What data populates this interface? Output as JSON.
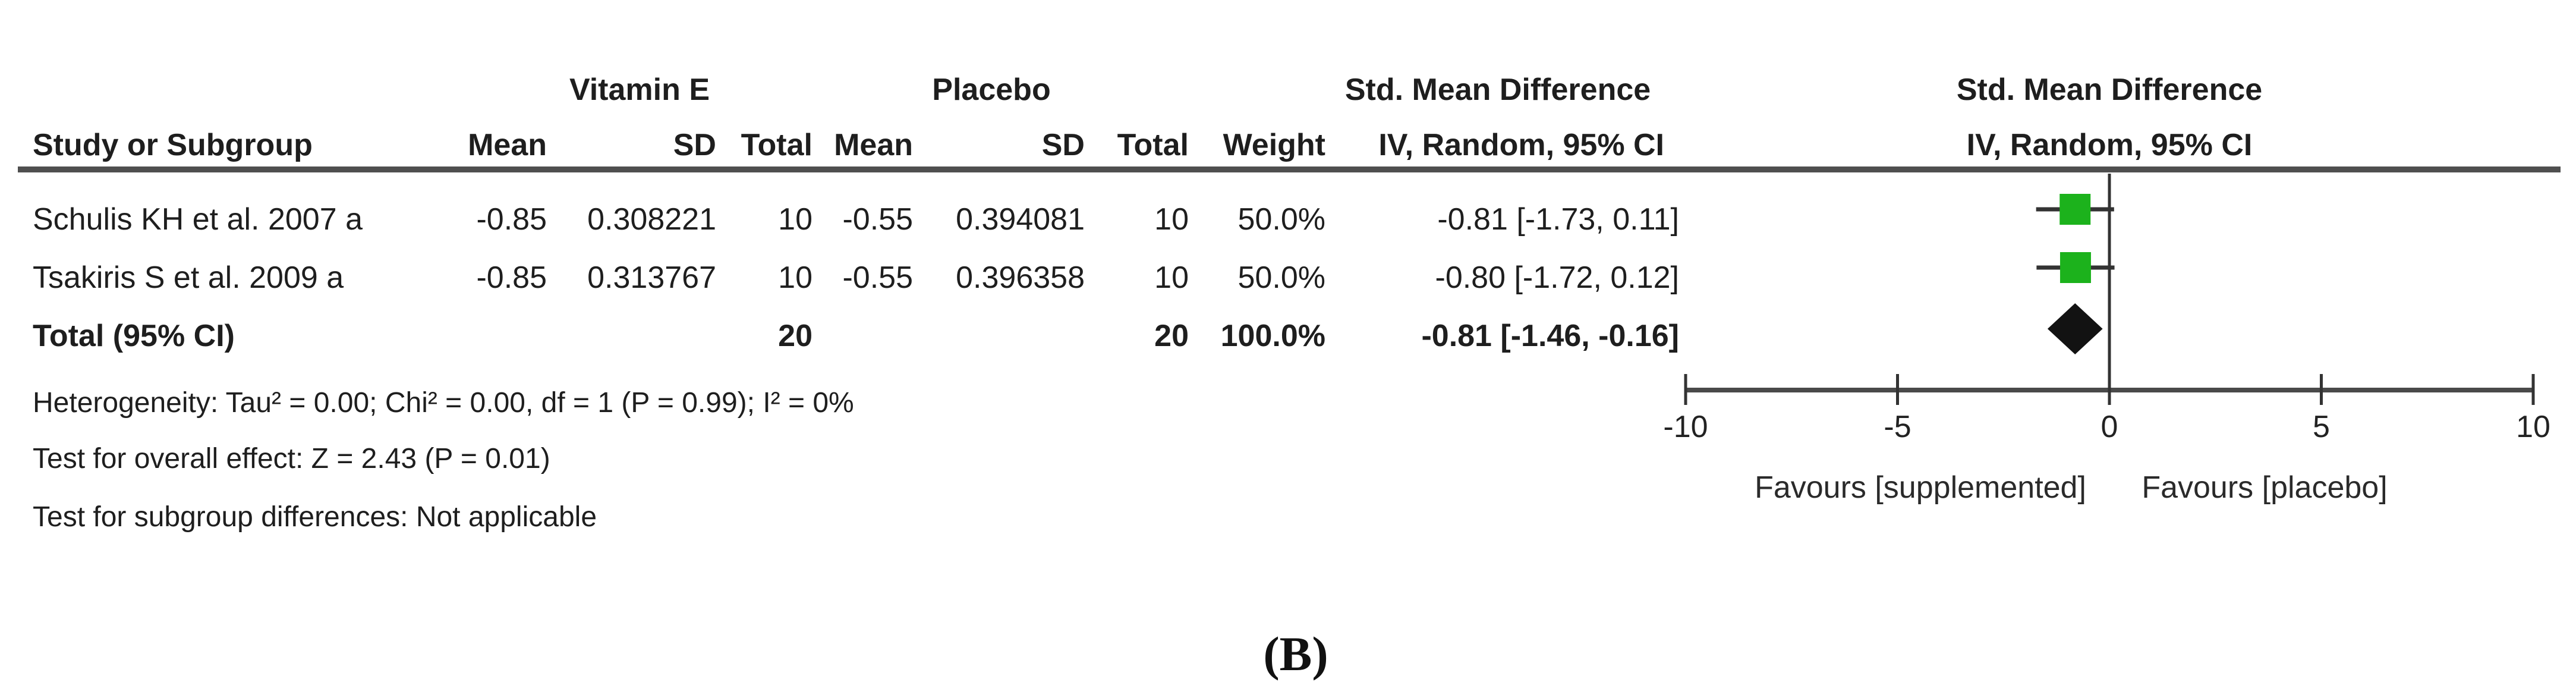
{
  "figure_label": "(B)",
  "headers": {
    "group1": "Vitamin E",
    "group2": "Placebo",
    "effect": "Std. Mean Difference",
    "study": "Study or Subgroup",
    "mean": "Mean",
    "sd": "SD",
    "total": "Total",
    "weight": "Weight",
    "method_ci": "IV, Random, 95% CI"
  },
  "table": {
    "rows": [
      {
        "study": "Schulis KH et al. 2007 a",
        "exp_mean": "-0.85",
        "exp_sd": "0.308221",
        "exp_total": "10",
        "ctrl_mean": "-0.55",
        "ctrl_sd": "0.394081",
        "ctrl_total": "10",
        "weight": "50.0%",
        "ci_text": "-0.81 [-1.73, 0.11]"
      },
      {
        "study": "Tsakiris S et al. 2009 a",
        "exp_mean": "-0.85",
        "exp_sd": "0.313767",
        "exp_total": "10",
        "ctrl_mean": "-0.55",
        "ctrl_sd": "0.396358",
        "ctrl_total": "10",
        "weight": "50.0%",
        "ci_text": "-0.80 [-1.72, 0.12]"
      }
    ],
    "total_row": {
      "label": "Total (95% CI)",
      "exp_total": "20",
      "ctrl_total": "20",
      "weight": "100.0%",
      "ci_text": "-0.81 [-1.46, -0.16]"
    },
    "footer": {
      "heterogeneity": "Heterogeneity: Tau² = 0.00; Chi² = 0.00, df = 1 (P = 0.99); I² = 0%",
      "overall_effect": "Test for overall effect: Z = 2.43 (P = 0.01)",
      "subgroup_test": "Test for subgroup differences: Not applicable"
    }
  },
  "chart_data": {
    "type": "forest",
    "effect_measure": "Std. Mean Difference",
    "method": "IV, Random, 95% CI",
    "studies": [
      {
        "label": "Schulis KH et al. 2007 a",
        "estimate": -0.81,
        "ci_lower": -1.73,
        "ci_upper": 0.11,
        "weight_pct": 50.0
      },
      {
        "label": "Tsakiris S et al. 2009 a",
        "estimate": -0.8,
        "ci_lower": -1.72,
        "ci_upper": 0.12,
        "weight_pct": 50.0
      }
    ],
    "total": {
      "label": "Total (95% CI)",
      "estimate": -0.81,
      "ci_lower": -1.46,
      "ci_upper": -0.16,
      "weight_pct": 100.0
    },
    "axis": {
      "min": -10,
      "max": 10,
      "ticks": [
        -10,
        -5,
        0,
        5,
        10
      ],
      "left_label": "Favours [supplemented]",
      "right_label": "Favours [placebo]"
    },
    "colors": {
      "square": "#1cb21c",
      "diamond": "#121212",
      "line": "#333333",
      "axis": "#4a4a4a"
    }
  }
}
